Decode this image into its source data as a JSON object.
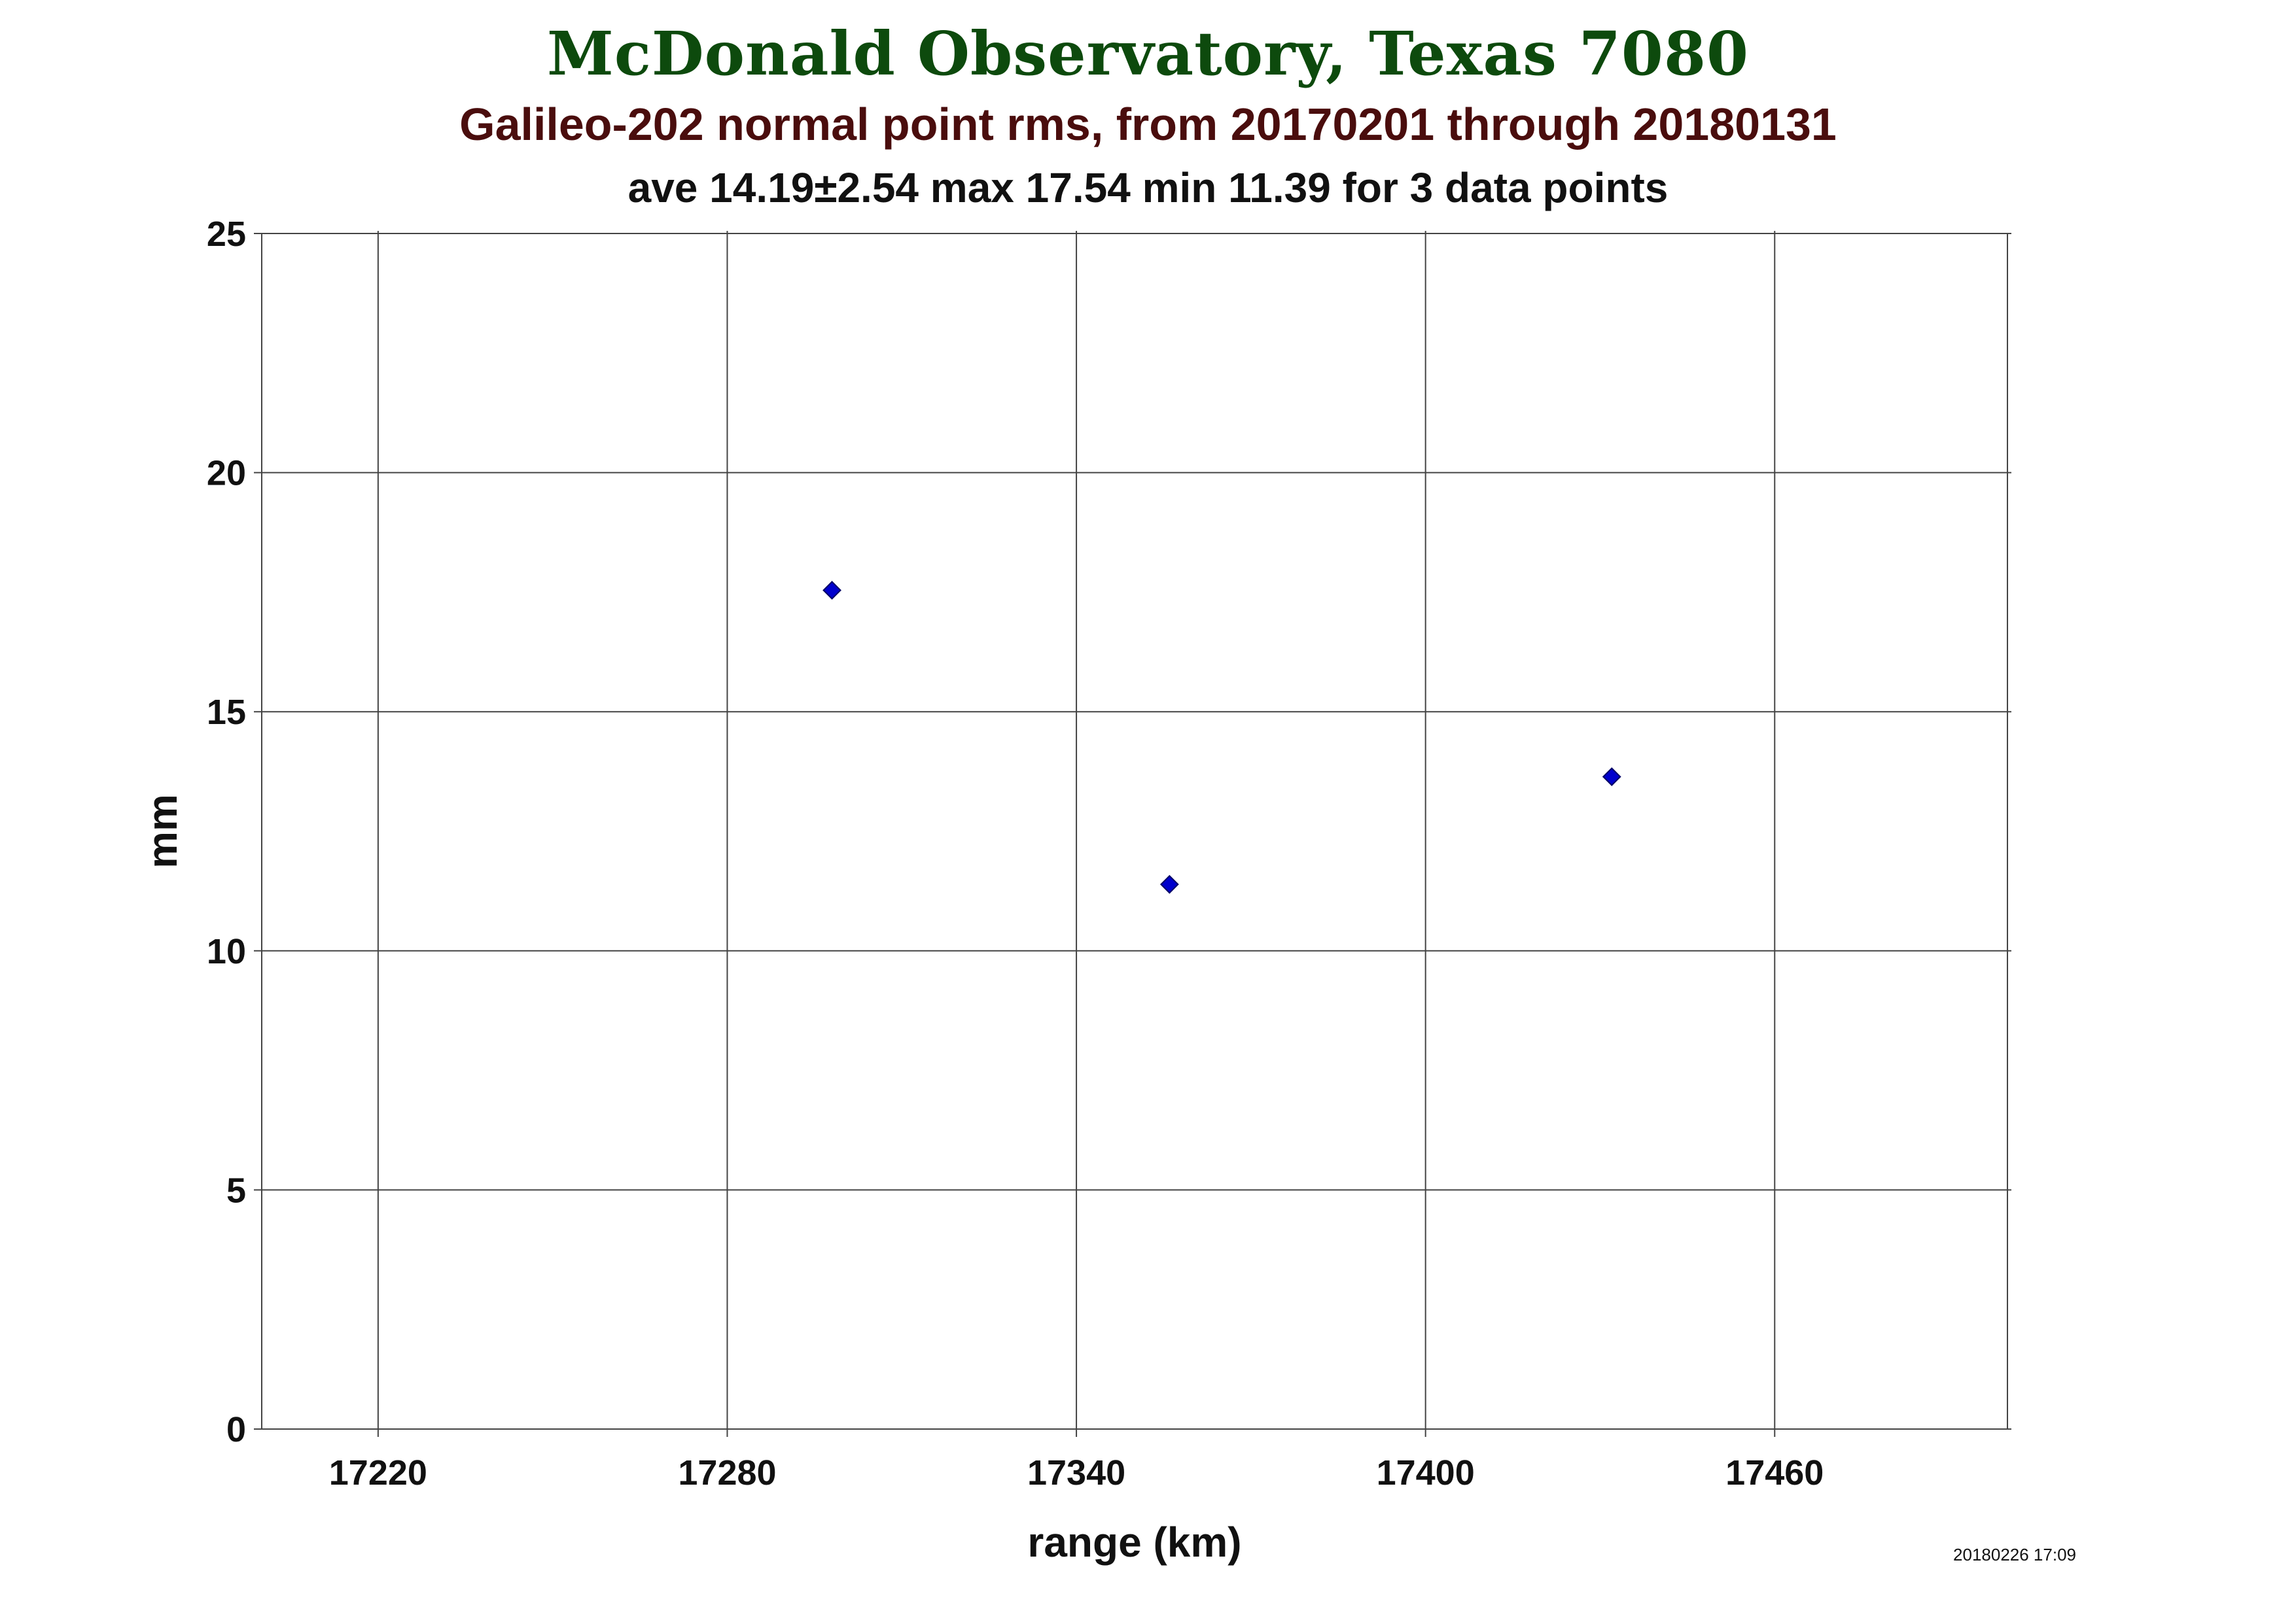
{
  "chart_data": {
    "type": "scatter",
    "title": "McDonald Observatory, Texas 7080",
    "subtitle": "Galileo-202 normal point rms, from 20170201 through 20180131",
    "stats_line": "ave 14.19±2.54 max 17.54 min 11.39 for 3 data points",
    "xlabel": "range (km)",
    "ylabel": "mm",
    "xlim": [
      17200,
      17500
    ],
    "ylim": [
      0,
      25
    ],
    "x_ticks": [
      17220,
      17280,
      17340,
      17400,
      17460
    ],
    "y_ticks": [
      0,
      5,
      10,
      15,
      20,
      25
    ],
    "grid": true,
    "marker": "diamond",
    "series": [
      {
        "points": [
          {
            "x": 17298,
            "y": 17.54
          },
          {
            "x": 17356,
            "y": 11.39
          },
          {
            "x": 17432,
            "y": 13.64
          }
        ]
      }
    ],
    "colors": {
      "title": "#0d4a0d",
      "subtitle": "#4a0d0d",
      "marker": "#0000cc",
      "grid": "#444444"
    },
    "timestamp": "20180226 17:09"
  }
}
